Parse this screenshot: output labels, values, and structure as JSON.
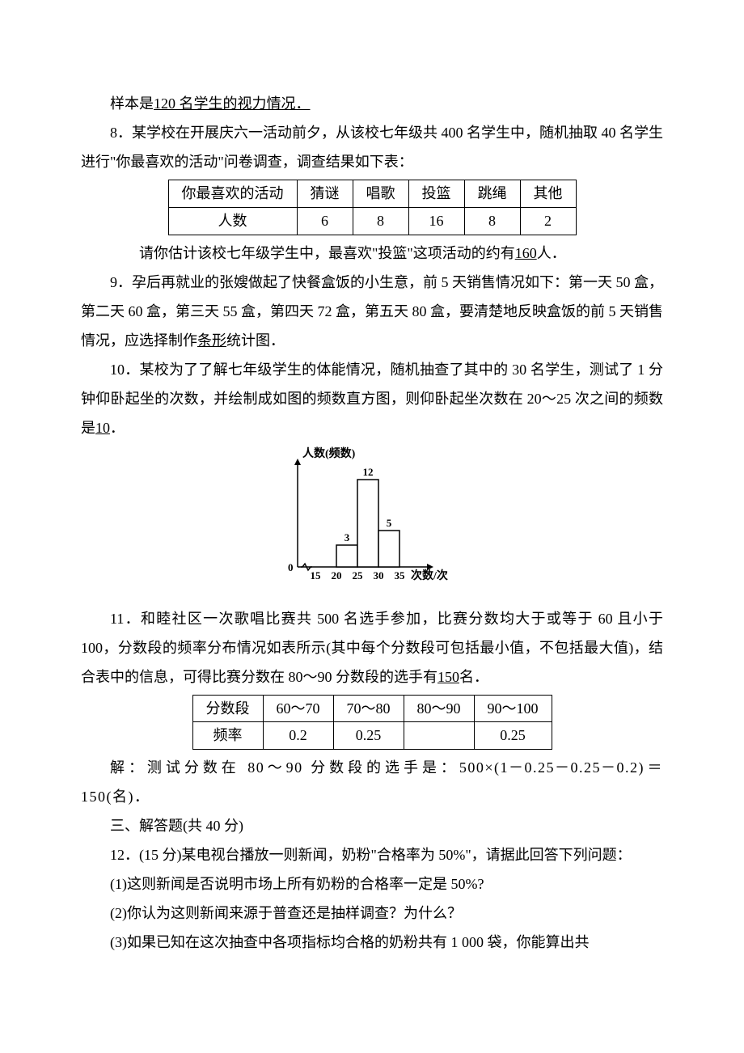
{
  "p_sample": {
    "pre": "样本是",
    "ul": "120 名学生的视力情况．"
  },
  "q8": {
    "text": "8．某学校在开展庆六一活动前夕，从该校七年级共 400 名学生中，随机抽取 40 名学生进行\"你最喜欢的活动\"问卷调查，调查结果如下表：",
    "table": {
      "headers": [
        "你最喜欢的活动",
        "猜谜",
        "唱歌",
        "投篮",
        "跳绳",
        "其他"
      ],
      "row_label": "人数",
      "values": [
        "6",
        "8",
        "16",
        "8",
        "2"
      ]
    },
    "after_pre": "请你估计该校七年级学生中，最喜欢\"投篮\"这项活动的约有",
    "after_ul": "160",
    "after_post": "人．"
  },
  "q9": {
    "text_pre": "9．孕后再就业的张嫂做起了快餐盒饭的小生意，前 5 天销售情况如下：第一天 50 盒，第二天 60 盒，第三天 55 盒，第四天 72 盒，第五天 80 盒，要清楚地反映盒饭的前 5 天销售情况，应选择制作",
    "text_ul": "条形",
    "text_post": "统计图．"
  },
  "q10": {
    "text_pre": "10．某校为了了解七年级学生的体能情况，随机抽查了其中的 30 名学生，测试了 1 分钟仰卧起坐的次数，并绘制成如图的频数直方图，则仰卧起坐次数在 20～25 次之间的频数是",
    "text_ul": "10",
    "text_post": "．"
  },
  "chart": {
    "type": "histogram",
    "y_title": "人数(频数)",
    "x_title": "次数/次",
    "origin_label": "0",
    "x_ticks": [
      "15",
      "20",
      "25",
      "30",
      "35"
    ],
    "bars": [
      {
        "label": "3",
        "height": 3
      },
      {
        "label": "12",
        "height": 12
      },
      {
        "label": "5",
        "height": 5
      }
    ],
    "x_start": 60,
    "x_bin_width": 26,
    "y_base": 150,
    "y_scale": 9,
    "bar_fill": "#ffffff",
    "bar_stroke": "#000000",
    "axis_color": "#000000",
    "font_size_axis": 13,
    "font_size_label": 13,
    "font_size_title": 14,
    "bg": "#ffffff",
    "first_bar_bin": 1
  },
  "q11": {
    "text_pre": "11．和睦社区一次歌唱比赛共 500 名选手参加，比赛分数均大于或等于 60 且小于 100，分数段的频率分布情况如表所示(其中每个分数段可包括最小值，不包括最大值)，结合表中的信息，可得比赛分数在 80～90 分数段的选手有",
    "text_ul": "150",
    "text_post": "名．",
    "table": {
      "header_label": "分数段",
      "segments": [
        "60～70",
        "70～80",
        "80～90",
        "90～100"
      ],
      "row_label": "频率",
      "values": [
        "0.2",
        "0.25",
        "",
        "0.25"
      ]
    },
    "solution": "解：测试分数在 80～90 分数段的选手是：500×(1－0.25－0.25－0.2)＝150(名)．"
  },
  "section3": "三、解答题(共 40 分)",
  "q12": {
    "stem": "12．(15 分)某电视台播放一则新闻，奶粉\"合格率为 50%\"，请据此回答下列问题：",
    "part1": "(1)这则新闻是否说明市场上所有奶粉的合格率一定是 50%?",
    "part2": "(2)你认为这则新闻来源于普查还是抽样调查？为什么？",
    "part3": "(3)如果已知在这次抽查中各项指标均合格的奶粉共有 1 000 袋，你能算出共"
  }
}
